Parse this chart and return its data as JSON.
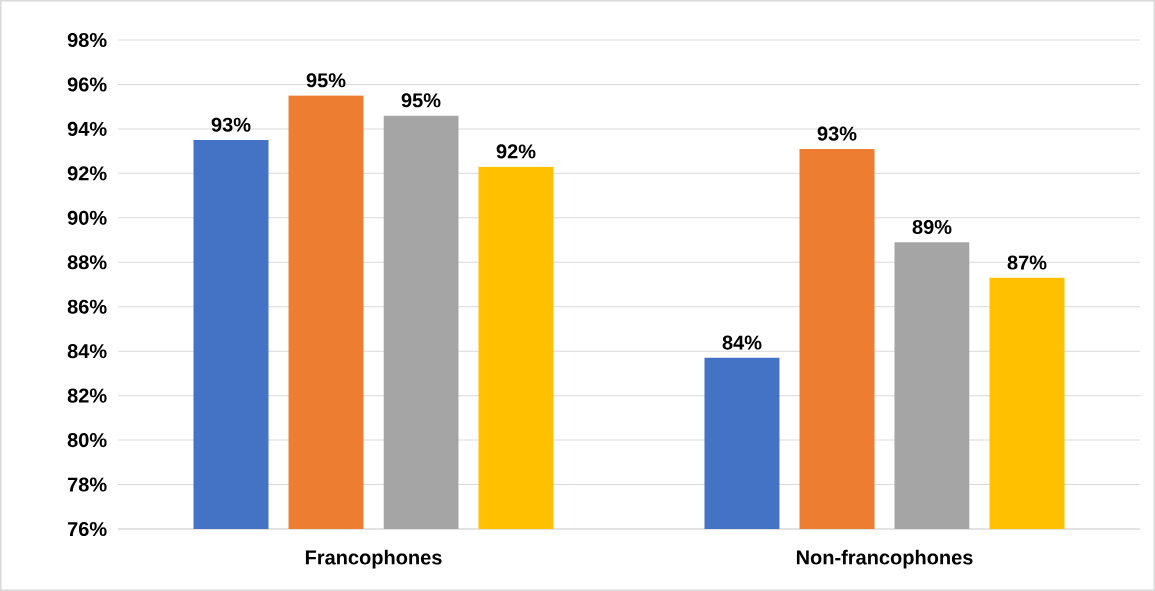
{
  "chart_data": {
    "type": "bar",
    "categories": [
      "Francophones",
      "Non-francophones"
    ],
    "series": [
      {
        "color": "#4472c4",
        "values": [
          93.5,
          83.7
        ],
        "value_labels": [
          "93%",
          "84%"
        ]
      },
      {
        "color": "#ed7d31",
        "values": [
          95.5,
          93.1
        ],
        "value_labels": [
          "95%",
          "93%"
        ]
      },
      {
        "color": "#a5a5a5",
        "values": [
          94.6,
          88.9
        ],
        "value_labels": [
          "95%",
          "89%"
        ]
      },
      {
        "color": "#ffc000",
        "values": [
          92.3,
          87.3
        ],
        "value_labels": [
          "92%",
          "87%"
        ]
      }
    ],
    "ylim": [
      76,
      98
    ],
    "yticks": [
      {
        "value": 76,
        "label": "76%"
      },
      {
        "value": 78,
        "label": "78%"
      },
      {
        "value": 80,
        "label": "80%"
      },
      {
        "value": 82,
        "label": "82%"
      },
      {
        "value": 84,
        "label": "84%"
      },
      {
        "value": 86,
        "label": "86%"
      },
      {
        "value": 88,
        "label": "88%"
      },
      {
        "value": 90,
        "label": "90%"
      },
      {
        "value": 92,
        "label": "92%"
      },
      {
        "value": 94,
        "label": "94%"
      },
      {
        "value": 96,
        "label": "96%"
      },
      {
        "value": 98,
        "label": "98%"
      }
    ],
    "grid": "y"
  }
}
